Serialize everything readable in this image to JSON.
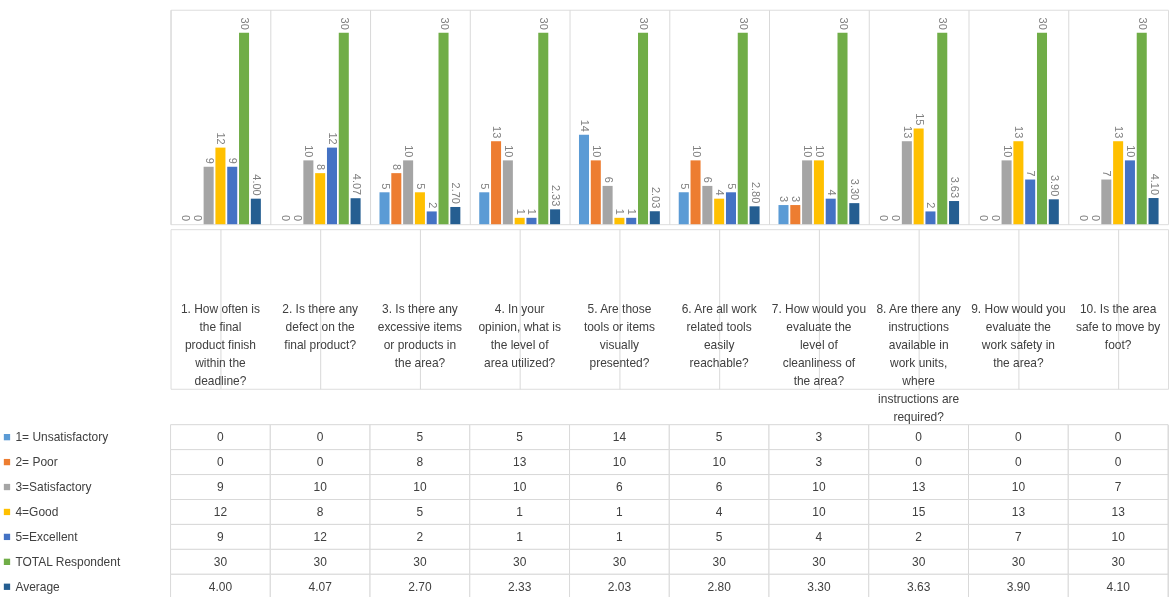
{
  "chart_data": {
    "type": "bar",
    "categories": [
      "1. How often is the final product finish within the deadline?",
      "2. Is there any defect on the final product?",
      "3. Is there any excessive items or products in the area?",
      "4. In your opinion, what is the level of area utilized?",
      "5. Are those tools or items visually presented?",
      "6. Are all work related tools easily reachable?",
      "7. How would you evaluate the level of cleanliness of the area?",
      "8. Are there any instructions available in work units, where instructions are required?",
      "9. How would you evaluate the work safety in the area?",
      "10. Is the area safe to move by foot?"
    ],
    "series": [
      {
        "name": "1= Unsatisfactory",
        "color": "#5b9bd5",
        "values": [
          0,
          0,
          5,
          5,
          14,
          5,
          3,
          0,
          0,
          0
        ],
        "value_labels": [
          "0",
          "0",
          "5",
          "5",
          "14",
          "5",
          "3",
          "0",
          "0",
          "0"
        ]
      },
      {
        "name": "2= Poor",
        "color": "#ed7d31",
        "values": [
          0,
          0,
          8,
          13,
          10,
          10,
          3,
          0,
          0,
          0
        ],
        "value_labels": [
          "0",
          "0",
          "8",
          "13",
          "10",
          "10",
          "3",
          "0",
          "0",
          "0"
        ]
      },
      {
        "name": "3=Satisfactory",
        "color": "#a5a5a5",
        "values": [
          9,
          10,
          10,
          10,
          6,
          6,
          10,
          13,
          10,
          7
        ],
        "value_labels": [
          "9",
          "10",
          "10",
          "10",
          "6",
          "6",
          "10",
          "13",
          "10",
          "7"
        ]
      },
      {
        "name": "4=Good",
        "color": "#ffc000",
        "values": [
          12,
          8,
          5,
          1,
          1,
          4,
          10,
          15,
          13,
          13
        ],
        "value_labels": [
          "12",
          "8",
          "5",
          "1",
          "1",
          "4",
          "10",
          "15",
          "13",
          "13"
        ]
      },
      {
        "name": "5=Excellent",
        "color": "#4472c4",
        "values": [
          9,
          12,
          2,
          1,
          1,
          5,
          4,
          2,
          7,
          10
        ],
        "value_labels": [
          "9",
          "12",
          "2",
          "1",
          "1",
          "5",
          "4",
          "2",
          "7",
          "10"
        ]
      },
      {
        "name": "TOTAL Respondent",
        "color": "#70ad47",
        "values": [
          30,
          30,
          30,
          30,
          30,
          30,
          30,
          30,
          30,
          30
        ],
        "value_labels": [
          "30",
          "30",
          "30",
          "30",
          "30",
          "30",
          "30",
          "30",
          "30",
          "30"
        ]
      },
      {
        "name": "Average",
        "color": "#255e91",
        "values": [
          4.0,
          4.07,
          2.7,
          2.33,
          2.03,
          2.8,
          3.3,
          3.63,
          3.9,
          4.1
        ],
        "value_labels": [
          "4.00",
          "4.07",
          "2.70",
          "2.33",
          "2.03",
          "2.80",
          "3.30",
          "3.63",
          "3.90",
          "4.10"
        ]
      }
    ],
    "data_labels": true,
    "legend": "bottom",
    "grid": "x"
  }
}
